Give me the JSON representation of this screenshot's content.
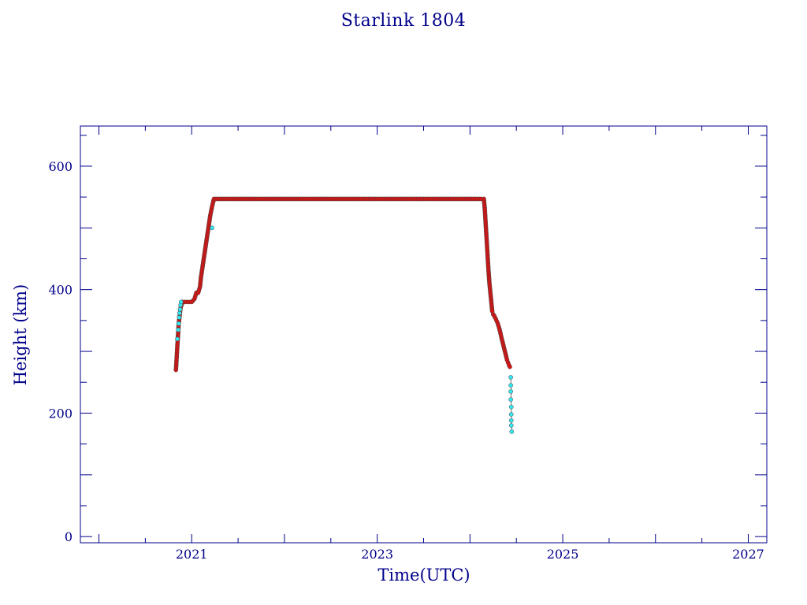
{
  "chart_data": {
    "type": "scatter",
    "title": "Starlink 1804",
    "xlabel": "Time(UTC)",
    "ylabel": "Height (km)",
    "xlim": [
      2019.8,
      2027.2
    ],
    "ylim": [
      -10,
      665
    ],
    "x_ticks": [
      2021,
      2023,
      2025,
      2027
    ],
    "y_ticks": [
      0,
      200,
      400,
      600
    ],
    "grid": false,
    "colors": {
      "axes": "#00008b",
      "primary": "#dd1111",
      "secondary": "#33e6f0",
      "edge": "#444444"
    },
    "series": [
      {
        "color": "#dd1111",
        "x": [
          2020.83,
          2020.835,
          2020.84,
          2020.845,
          2020.85,
          2020.855,
          2020.86,
          2020.87,
          2020.88,
          2020.9,
          2020.95,
          2021.0,
          2021.03,
          2021.05,
          2021.07,
          2021.09,
          2021.1,
          2021.12,
          2021.14,
          2021.16,
          2021.18,
          2021.2,
          2021.22,
          2021.24,
          2021.3,
          2021.5,
          2021.75,
          2022.0,
          2022.25,
          2022.5,
          2022.75,
          2023.0,
          2023.25,
          2023.5,
          2023.75,
          2024.0,
          2024.12,
          2024.15,
          2024.16,
          2024.17,
          2024.18,
          2024.19,
          2024.2,
          2024.21,
          2024.22,
          2024.23,
          2024.24,
          2024.25,
          2024.26,
          2024.28,
          2024.3,
          2024.32,
          2024.34,
          2024.36,
          2024.38,
          2024.39,
          2024.4,
          2024.41,
          2024.42,
          2024.43
        ],
        "y": [
          270,
          282,
          295,
          308,
          320,
          332,
          345,
          357,
          370,
          380,
          380,
          380,
          385,
          395,
          395,
          405,
          420,
          440,
          460,
          480,
          500,
          520,
          535,
          547,
          547,
          547,
          547,
          547,
          547,
          547,
          547,
          547,
          547,
          547,
          547,
          547,
          547,
          547,
          530,
          505,
          480,
          455,
          430,
          410,
          395,
          380,
          365,
          360,
          358,
          352,
          345,
          335,
          322,
          310,
          298,
          292,
          286,
          282,
          278,
          275
        ]
      },
      {
        "color": "#33e6f0",
        "x": [
          2020.845,
          2020.855,
          2020.86,
          2020.865,
          2020.87,
          2020.875,
          2020.88,
          2020.885,
          2021.22,
          2024.44,
          2024.44,
          2024.44,
          2024.44,
          2024.445,
          2024.445,
          2024.445,
          2024.445,
          2024.45
        ],
        "y": [
          320,
          335,
          345,
          355,
          362,
          368,
          375,
          380,
          500,
          258,
          245,
          235,
          222,
          210,
          198,
          188,
          180,
          170
        ]
      }
    ]
  }
}
